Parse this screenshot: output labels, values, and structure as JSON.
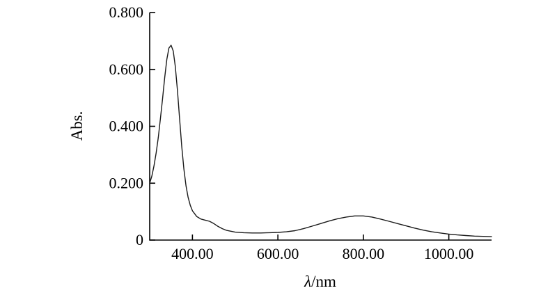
{
  "figure": {
    "background": "#ffffff",
    "axis_color": "#000000",
    "line_color": "#1a1a1a"
  },
  "chart_data": {
    "type": "line",
    "title": "",
    "xlabel_symbol": "λ",
    "xlabel_rest": "/nm",
    "ylabel": "Abs.",
    "xlim": [
      300,
      1100
    ],
    "ylim": [
      0,
      0.8
    ],
    "grid": false,
    "legend": "none",
    "x_tick_values": [
      400,
      600,
      800,
      1000
    ],
    "x_tick_labels": [
      "400.00",
      "600.00",
      "800.00",
      "1000.00"
    ],
    "y_tick_values": [
      0,
      0.2,
      0.4,
      0.6,
      0.8
    ],
    "y_tick_labels": [
      "0",
      "0.200",
      "0.400",
      "0.600",
      "0.800"
    ],
    "series": [
      {
        "name": "absorption-spectrum",
        "x": [
          300,
          305,
          310,
          315,
          320,
          325,
          330,
          335,
          340,
          345,
          350,
          355,
          360,
          365,
          370,
          375,
          380,
          385,
          390,
          395,
          400,
          410,
          420,
          430,
          440,
          450,
          460,
          470,
          480,
          500,
          520,
          540,
          560,
          580,
          600,
          620,
          640,
          660,
          680,
          700,
          720,
          740,
          760,
          780,
          800,
          820,
          840,
          860,
          880,
          900,
          920,
          940,
          960,
          980,
          1000,
          1020,
          1040,
          1060,
          1080,
          1100
        ],
        "y": [
          0.2,
          0.225,
          0.26,
          0.305,
          0.36,
          0.425,
          0.495,
          0.57,
          0.635,
          0.675,
          0.685,
          0.665,
          0.61,
          0.525,
          0.425,
          0.33,
          0.25,
          0.19,
          0.15,
          0.122,
          0.103,
          0.083,
          0.074,
          0.07,
          0.066,
          0.058,
          0.048,
          0.04,
          0.034,
          0.028,
          0.026,
          0.025,
          0.025,
          0.026,
          0.027,
          0.029,
          0.033,
          0.04,
          0.049,
          0.058,
          0.067,
          0.075,
          0.081,
          0.085,
          0.085,
          0.081,
          0.074,
          0.066,
          0.058,
          0.05,
          0.042,
          0.035,
          0.029,
          0.025,
          0.021,
          0.018,
          0.016,
          0.014,
          0.013,
          0.012
        ]
      }
    ]
  }
}
